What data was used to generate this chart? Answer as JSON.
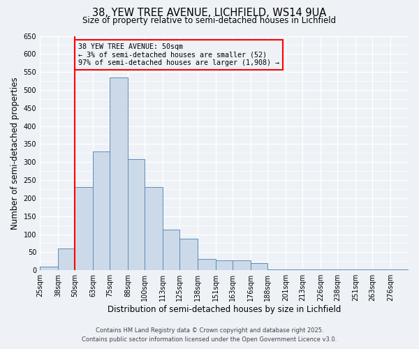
{
  "title1": "38, YEW TREE AVENUE, LICHFIELD, WS14 9UA",
  "title2": "Size of property relative to semi-detached houses in Lichfield",
  "xlabel": "Distribution of semi-detached houses by size in Lichfield",
  "ylabel": "Number of semi-detached properties",
  "bin_labels": [
    "25sqm",
    "38sqm",
    "50sqm",
    "63sqm",
    "75sqm",
    "88sqm",
    "100sqm",
    "113sqm",
    "125sqm",
    "138sqm",
    "151sqm",
    "163sqm",
    "176sqm",
    "188sqm",
    "201sqm",
    "213sqm",
    "226sqm",
    "238sqm",
    "251sqm",
    "263sqm",
    "276sqm"
  ],
  "bin_edges": [
    25,
    38,
    50,
    63,
    75,
    88,
    100,
    113,
    125,
    138,
    151,
    163,
    176,
    188,
    201,
    213,
    226,
    238,
    251,
    263,
    276
  ],
  "bar_heights": [
    10,
    60,
    230,
    330,
    535,
    308,
    230,
    113,
    88,
    32,
    27,
    27,
    20,
    2,
    2,
    2,
    2,
    2,
    2,
    2,
    2
  ],
  "bar_color": "#ccd9e8",
  "bar_edge_color": "#5b8db8",
  "property_line_x": 50,
  "property_line_color": "red",
  "annotation_title": "38 YEW TREE AVENUE: 50sqm",
  "annotation_line1": "← 3% of semi-detached houses are smaller (52)",
  "annotation_line2": "97% of semi-detached houses are larger (1,908) →",
  "annotation_box_color": "red",
  "ylim": [
    0,
    650
  ],
  "yticks": [
    0,
    50,
    100,
    150,
    200,
    250,
    300,
    350,
    400,
    450,
    500,
    550,
    600,
    650
  ],
  "background_color": "#eef2f7",
  "footer1": "Contains HM Land Registry data © Crown copyright and database right 2025.",
  "footer2": "Contains public sector information licensed under the Open Government Licence v3.0."
}
